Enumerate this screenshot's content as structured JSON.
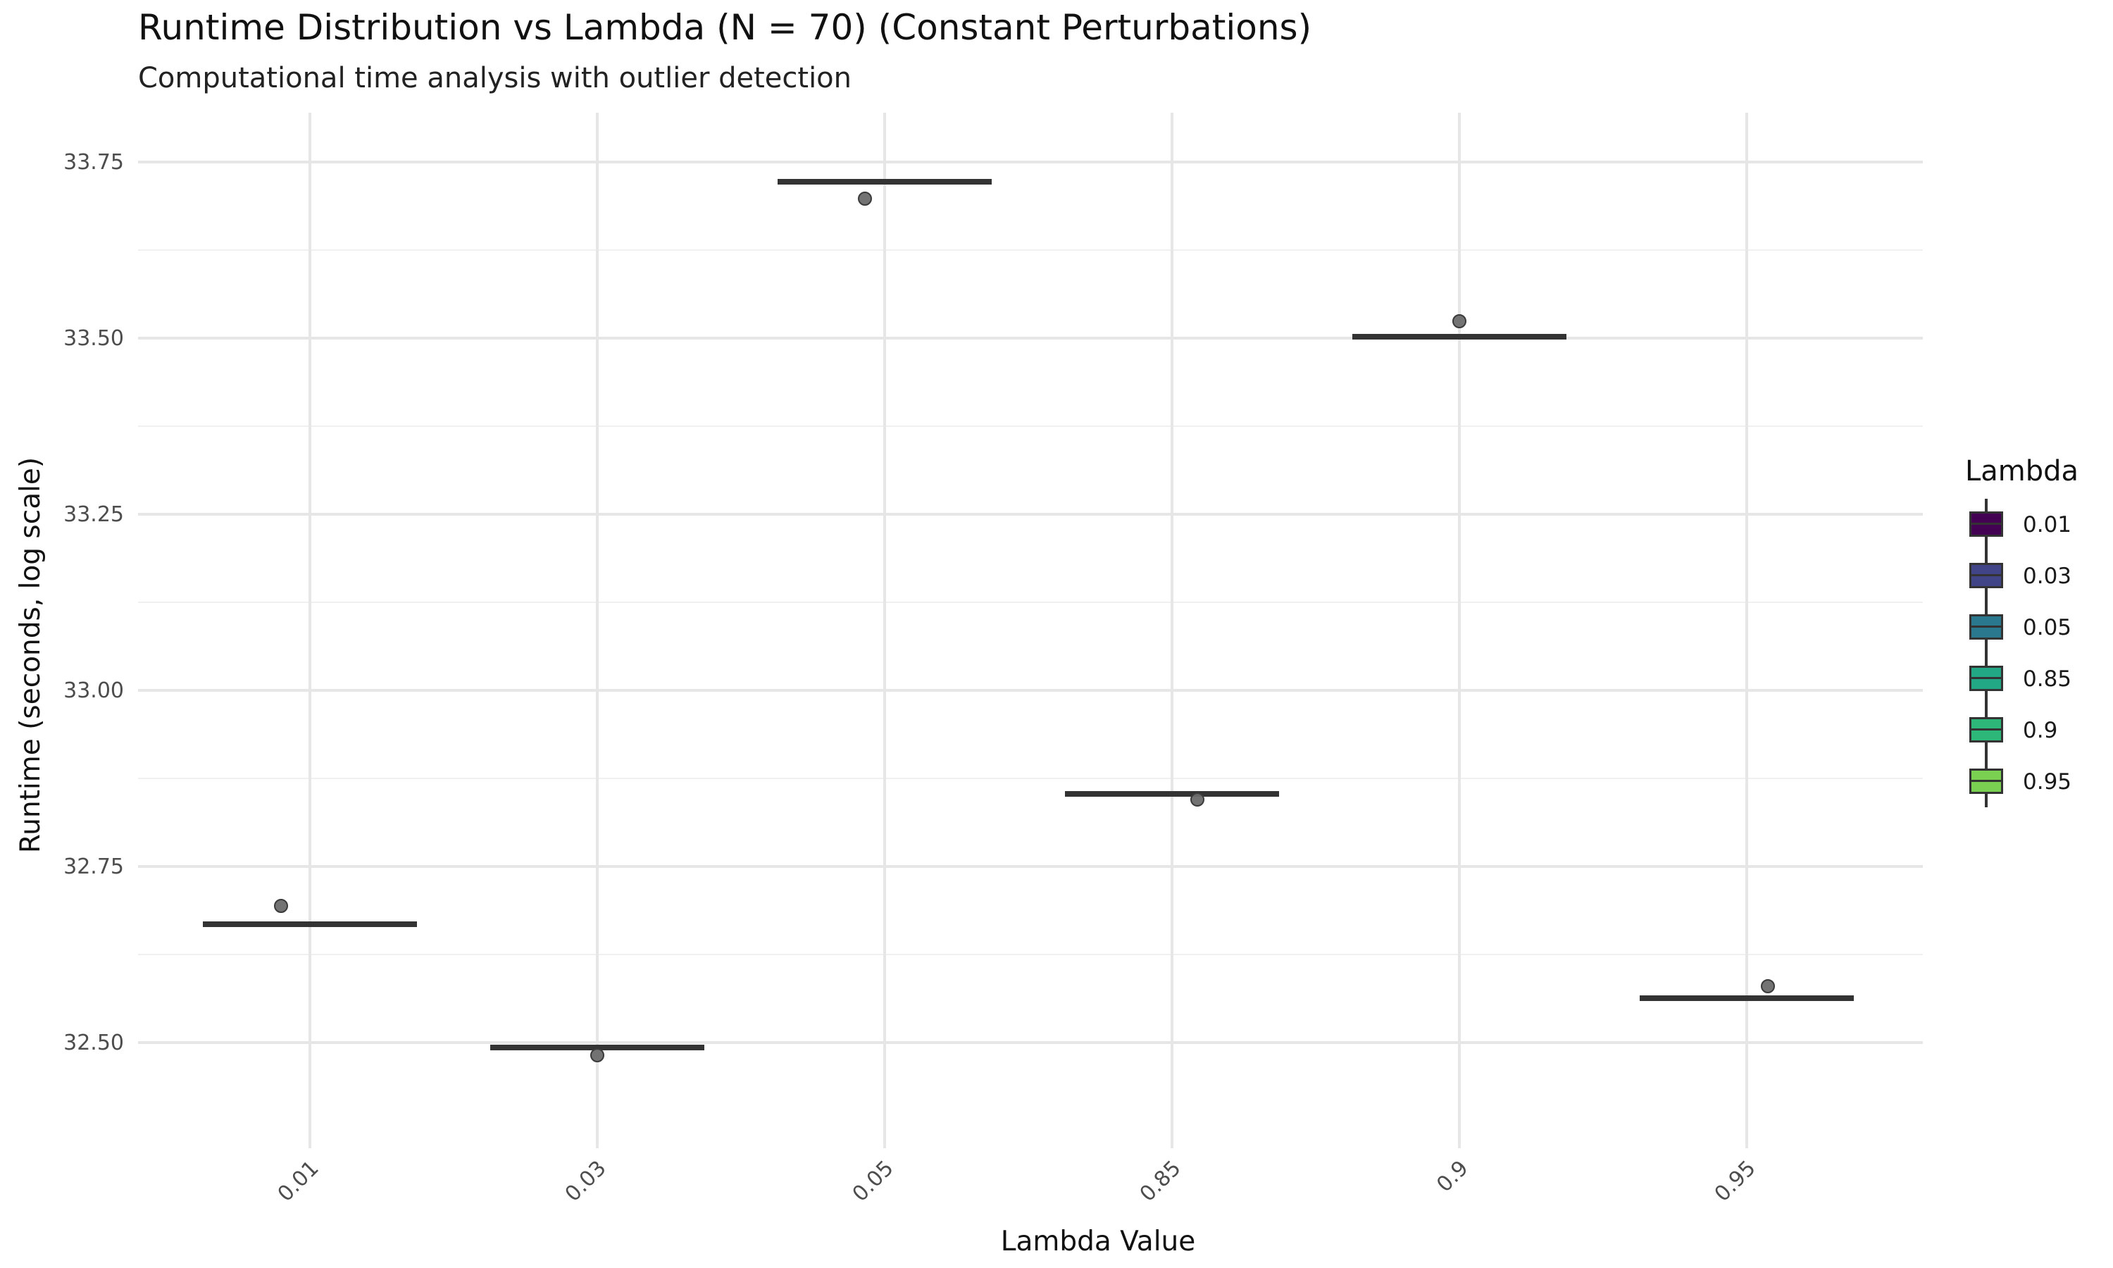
{
  "title": "Runtime Distribution vs Lambda (N = 70) (Constant Perturbations)",
  "subtitle": "Computational time analysis with outlier detection",
  "chart_data": {
    "type": "box",
    "title": "Runtime Distribution vs Lambda (N = 70) (Constant Perturbations)",
    "subtitle": "Computational time analysis with outlier detection",
    "xlabel": "Lambda Value",
    "ylabel": "Runtime (seconds, log scale)",
    "y_scale": "log",
    "ylim": [
      32.43,
      33.78
    ],
    "y_ticks": [
      32.5,
      32.75,
      33.0,
      33.25,
      33.5,
      33.75
    ],
    "y_tick_labels": [
      "32.50",
      "32.75",
      "33.00",
      "33.25",
      "33.50",
      "33.75"
    ],
    "categories": [
      "0.01",
      "0.03",
      "0.05",
      "0.85",
      "0.9",
      "0.95"
    ],
    "x_tick_rotation": 45,
    "grid": true,
    "medians": [
      32.668,
      32.493,
      33.722,
      32.853,
      33.502,
      32.563
    ],
    "points": [
      {
        "category": "0.01",
        "y": 32.694
      },
      {
        "category": "0.03",
        "y": 32.482
      },
      {
        "category": "0.05",
        "y": 33.698
      },
      {
        "category": "0.85",
        "y": 32.845
      },
      {
        "category": "0.9",
        "y": 33.524
      },
      {
        "category": "0.95",
        "y": 32.58
      }
    ],
    "legend": {
      "title": "Lambda",
      "position": "right",
      "entries": [
        "0.01",
        "0.03",
        "0.05",
        "0.85",
        "0.9",
        "0.95"
      ],
      "colors": [
        "#440154",
        "#414487",
        "#2A788E",
        "#22A884",
        "#2DB87A",
        "#7AD151"
      ]
    },
    "box_line_color": "#333333",
    "point_color": "#6b6b6b"
  }
}
